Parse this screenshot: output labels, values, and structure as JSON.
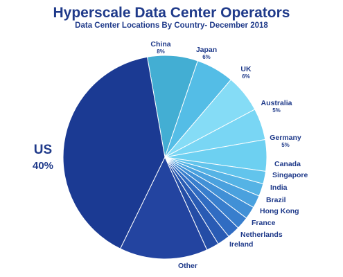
{
  "chart_data": {
    "type": "pie",
    "title": "Hyperscale Data Center Operators",
    "subtitle": "Data Center Locations By Country- December 2018",
    "slices": [
      {
        "label": "US",
        "value": 40,
        "value_label": "40%",
        "color": "#1b3a93"
      },
      {
        "label": "China",
        "value": 8,
        "value_label": "8%",
        "color": "#43aed3"
      },
      {
        "label": "Japan",
        "value": 6,
        "value_label": "6%",
        "color": "#54bde6"
      },
      {
        "label": "UK",
        "value": 6,
        "value_label": "6%",
        "color": "#85dcf6"
      },
      {
        "label": "Australia",
        "value": 5,
        "value_label": "5%",
        "color": "#79d6f4"
      },
      {
        "label": "Germany",
        "value": 5,
        "value_label": "5%",
        "color": "#6dd0f1"
      },
      {
        "label": "Canada",
        "value": 2,
        "value_label": "",
        "color": "#62c4ec"
      },
      {
        "label": "Singapore",
        "value": 2,
        "value_label": "",
        "color": "#55b3e5"
      },
      {
        "label": "India",
        "value": 2,
        "value_label": "",
        "color": "#4aa1de"
      },
      {
        "label": "Brazil",
        "value": 2,
        "value_label": "",
        "color": "#4190d6"
      },
      {
        "label": "Hong Kong",
        "value": 2,
        "value_label": "",
        "color": "#387ecd"
      },
      {
        "label": "France",
        "value": 2,
        "value_label": "",
        "color": "#306cc2"
      },
      {
        "label": "Netherlands",
        "value": 2,
        "value_label": "",
        "color": "#295bb4"
      },
      {
        "label": "Ireland",
        "value": 2,
        "value_label": "",
        "color": "#244da6"
      },
      {
        "label": "Other",
        "value": 14,
        "value_label": "",
        "color": "#2344a0"
      }
    ]
  }
}
